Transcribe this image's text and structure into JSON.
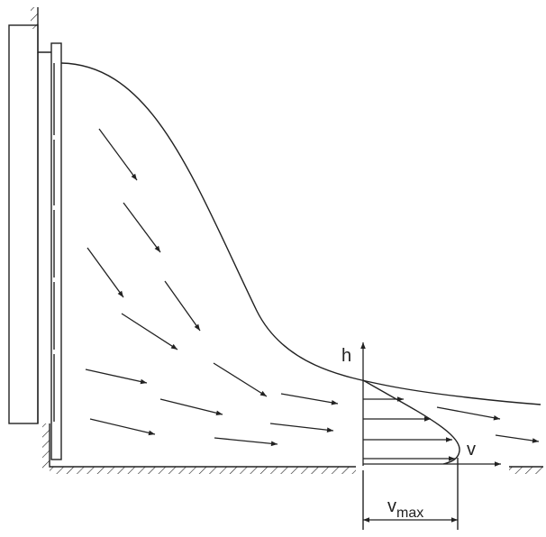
{
  "labels": {
    "h": "h",
    "v": "v",
    "vmax": {
      "base": "v",
      "sub": "max"
    }
  }
}
